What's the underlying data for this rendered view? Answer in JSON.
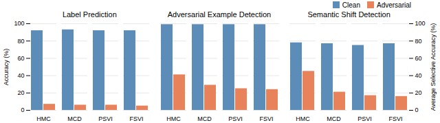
{
  "chart_data": [
    {
      "type": "bar",
      "title": "Label Prediction",
      "categories": [
        "HMC",
        "MCD",
        "PSVI",
        "FSVI"
      ],
      "series": [
        {
          "name": "Clean",
          "color": "#5b8db8",
          "values": [
            92,
            93,
            92,
            92
          ]
        },
        {
          "name": "Adversarial",
          "color": "#e8825a",
          "values": [
            7,
            6,
            6,
            5
          ]
        }
      ],
      "ylabel": "Accuracy (%)",
      "ylim": [
        0,
        100
      ],
      "yticks": [
        0,
        20,
        40,
        60,
        80,
        100
      ],
      "grid": true
    },
    {
      "type": "bar",
      "title": "Adversarial Example Detection",
      "categories": [
        "HMC",
        "MCD",
        "PSVI",
        "FSVI"
      ],
      "series": [
        {
          "name": "Clean",
          "color": "#5b8db8",
          "values": [
            99,
            99,
            99,
            99
          ]
        },
        {
          "name": "Adversarial",
          "color": "#e8825a",
          "values": [
            41,
            29,
            25,
            24
          ]
        }
      ],
      "ylim": [
        0,
        100
      ],
      "yticks": [
        0,
        20,
        40,
        60,
        80,
        100
      ],
      "grid": true,
      "tick_labels": "x"
    },
    {
      "type": "bar",
      "title": "Semantic Shift Detection",
      "categories": [
        "HMC",
        "MCD",
        "PSVI",
        "FSVI"
      ],
      "series": [
        {
          "name": "Clean",
          "color": "#5b8db8",
          "values": [
            78,
            77,
            75,
            77
          ]
        },
        {
          "name": "Adversarial",
          "color": "#e8825a",
          "values": [
            45,
            21,
            17,
            16
          ]
        }
      ],
      "y2label": "Average Selective Accuracy (%)",
      "ylim": [
        0,
        100
      ],
      "yticks": [
        0,
        20,
        40,
        60,
        80,
        100
      ],
      "y2lim": [
        0,
        100
      ],
      "y2ticks": [
        0,
        20,
        40,
        60,
        80,
        100
      ],
      "grid": true,
      "legend": "upper right"
    }
  ]
}
